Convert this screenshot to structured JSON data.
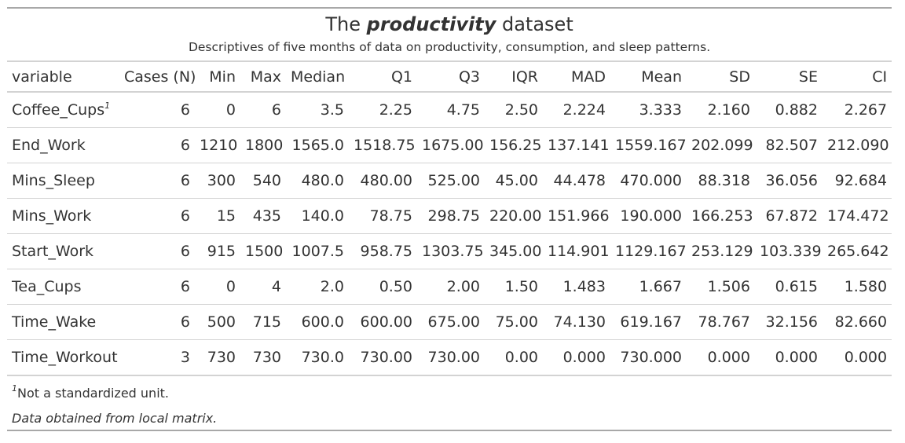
{
  "title": {
    "prefix": "The",
    "emphasis": "productivity",
    "suffix": "dataset"
  },
  "subtitle": "Descriptives of five months of data on productivity, consumption, and sleep patterns.",
  "columns": [
    "variable",
    "Cases (N)",
    "Min",
    "Max",
    "Median",
    "Q1",
    "Q3",
    "IQR",
    "MAD",
    "Mean",
    "SD",
    "SE",
    "CI"
  ],
  "rows": [
    {
      "variable": "Coffee_Cups",
      "footnote_mark": "1",
      "values": [
        "6",
        "0",
        "6",
        "3.5",
        "2.25",
        "4.75",
        "2.50",
        "2.224",
        "3.333",
        "2.160",
        "0.882",
        "2.267"
      ]
    },
    {
      "variable": "End_Work",
      "footnote_mark": "",
      "values": [
        "6",
        "1210",
        "1800",
        "1565.0",
        "1518.75",
        "1675.00",
        "156.25",
        "137.141",
        "1559.167",
        "202.099",
        "82.507",
        "212.090"
      ]
    },
    {
      "variable": "Mins_Sleep",
      "footnote_mark": "",
      "values": [
        "6",
        "300",
        "540",
        "480.0",
        "480.00",
        "525.00",
        "45.00",
        "44.478",
        "470.000",
        "88.318",
        "36.056",
        "92.684"
      ]
    },
    {
      "variable": "Mins_Work",
      "footnote_mark": "",
      "values": [
        "6",
        "15",
        "435",
        "140.0",
        "78.75",
        "298.75",
        "220.00",
        "151.966",
        "190.000",
        "166.253",
        "67.872",
        "174.472"
      ]
    },
    {
      "variable": "Start_Work",
      "footnote_mark": "",
      "values": [
        "6",
        "915",
        "1500",
        "1007.5",
        "958.75",
        "1303.75",
        "345.00",
        "114.901",
        "1129.167",
        "253.129",
        "103.339",
        "265.642"
      ]
    },
    {
      "variable": "Tea_Cups",
      "footnote_mark": "",
      "values": [
        "6",
        "0",
        "4",
        "2.0",
        "0.50",
        "2.00",
        "1.50",
        "1.483",
        "1.667",
        "1.506",
        "0.615",
        "1.580"
      ]
    },
    {
      "variable": "Time_Wake",
      "footnote_mark": "",
      "values": [
        "6",
        "500",
        "715",
        "600.0",
        "600.00",
        "675.00",
        "75.00",
        "74.130",
        "619.167",
        "78.767",
        "32.156",
        "82.660"
      ]
    },
    {
      "variable": "Time_Workout",
      "footnote_mark": "",
      "values": [
        "3",
        "730",
        "730",
        "730.0",
        "730.00",
        "730.00",
        "0.00",
        "0.000",
        "730.000",
        "0.000",
        "0.000",
        "0.000"
      ]
    }
  ],
  "footnote": {
    "mark": "1",
    "text": "Not a standardized unit."
  },
  "source_note": "Data obtained from local matrix.",
  "colors": {
    "text": "#333333",
    "rule_outer": "#a8a8a8",
    "rule_inner": "#d3d3d3"
  }
}
